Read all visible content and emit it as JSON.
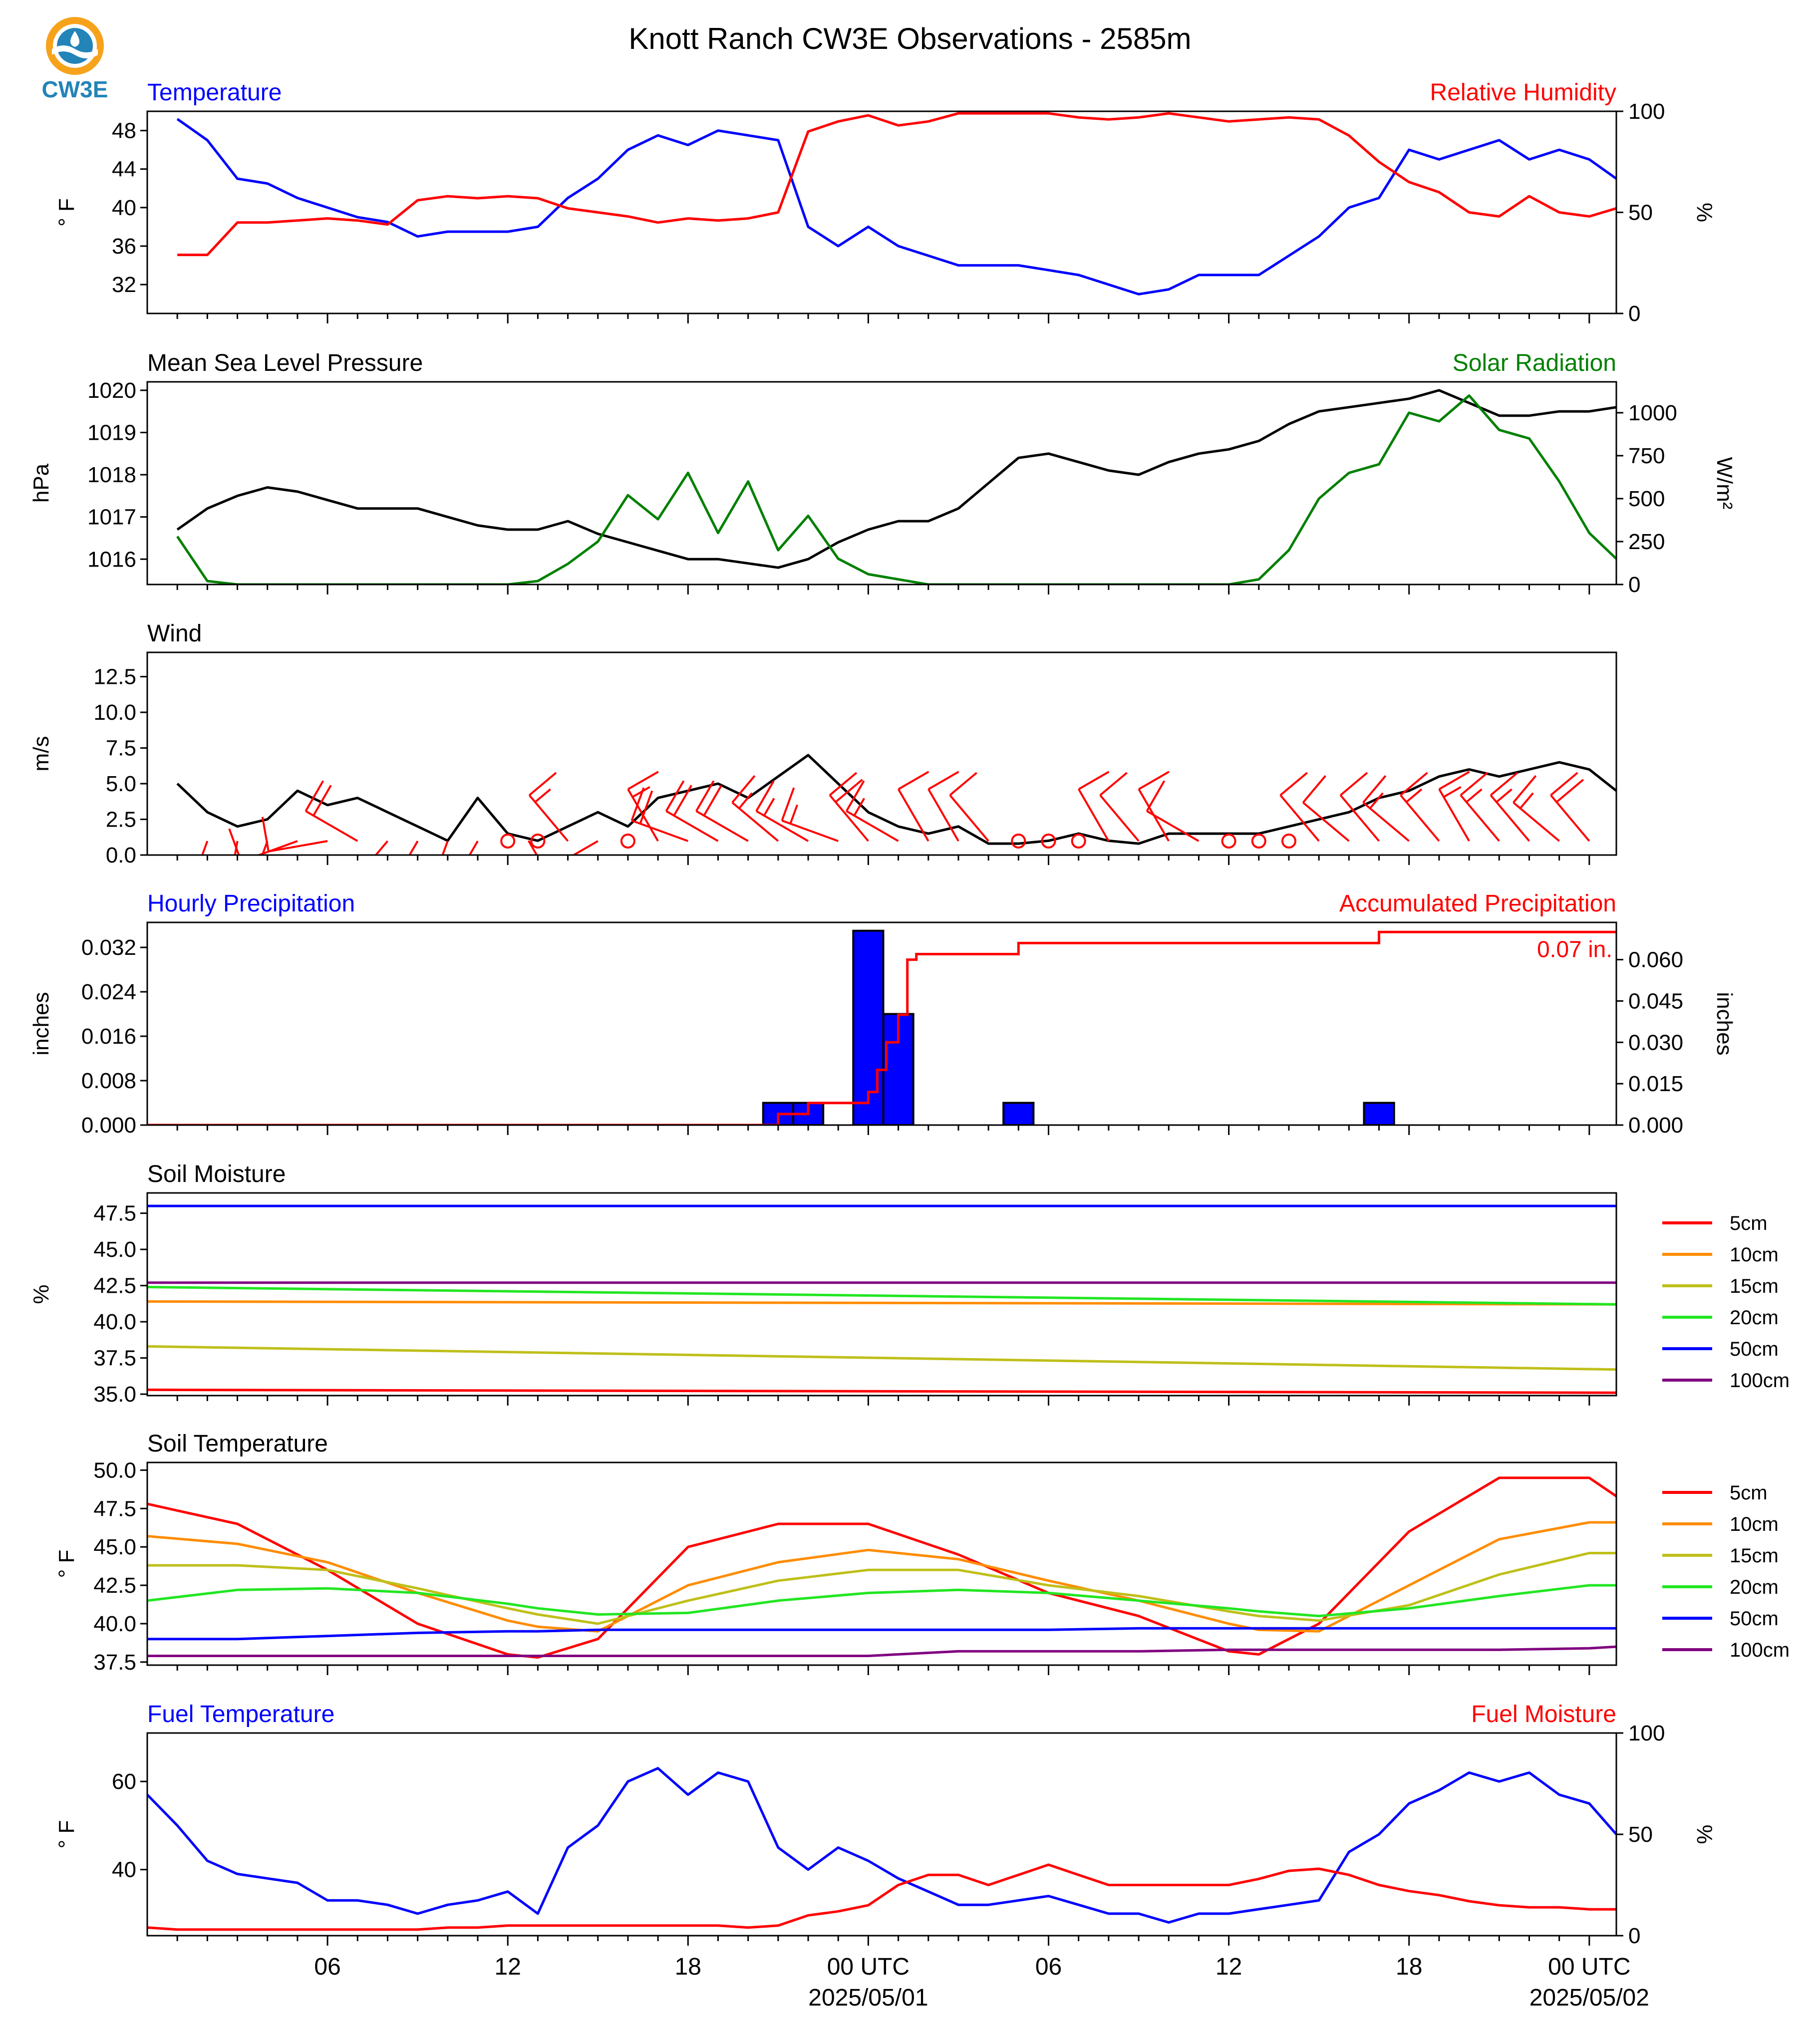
{
  "title": "Knott Ranch CW3E Observations - 2585m",
  "logo": {
    "text": "CW3E"
  },
  "colors": {
    "blue": "#0000ff",
    "red": "#ff0000",
    "green": "#008000",
    "black": "#000000",
    "orange": "#ff8c00",
    "olive": "#bfbf1a",
    "lime": "#22e622",
    "purple": "#800080"
  },
  "time_axis": {
    "ticks": [
      {
        "h": 6,
        "label": "06"
      },
      {
        "h": 12,
        "label": "12"
      },
      {
        "h": 18,
        "label": "18"
      },
      {
        "h": 24,
        "label": "00 UTC",
        "date": "2025/05/01"
      },
      {
        "h": 30,
        "label": "06"
      },
      {
        "h": 36,
        "label": "12"
      },
      {
        "h": 42,
        "label": "18"
      },
      {
        "h": 48,
        "label": "00 UTC",
        "date": "2025/05/02"
      }
    ]
  },
  "chart_data": [
    {
      "id": "temp_rh",
      "type": "line",
      "title_left": "Temperature",
      "title_right": "Relative Humidity",
      "ylabel": "° F",
      "ylabel_right": "%",
      "ylim": [
        29,
        50
      ],
      "yticks": [
        32,
        36,
        40,
        44,
        48
      ],
      "ylim_right": [
        0,
        100
      ],
      "yticks_right": [
        0,
        50,
        100
      ],
      "x_hours": [
        1,
        2,
        3,
        4,
        5,
        6,
        7,
        8,
        9,
        10,
        11,
        12,
        13,
        14,
        15,
        16,
        17,
        18,
        19,
        20,
        21,
        22,
        23,
        24,
        25,
        26,
        27,
        28,
        29,
        30,
        31,
        32,
        33,
        34,
        35,
        36,
        37,
        38,
        39,
        40,
        41,
        42,
        43,
        44,
        45,
        46,
        47,
        48,
        48.9
      ],
      "series": [
        {
          "name": "Temperature",
          "axis": "left",
          "color": "#0000ff",
          "values": [
            49.2,
            47,
            43,
            42.5,
            41,
            40,
            39,
            38.5,
            37,
            37.5,
            37.5,
            37.5,
            38,
            41,
            43,
            46,
            47.5,
            46.5,
            48,
            47.5,
            47,
            38,
            36,
            38,
            36,
            35,
            34,
            34,
            34,
            33.5,
            33,
            32,
            31,
            31.5,
            33,
            33,
            33,
            35,
            37,
            40,
            41,
            46,
            45,
            46,
            47,
            45,
            46,
            45,
            43
          ]
        },
        {
          "name": "Relative Humidity",
          "axis": "right",
          "color": "#ff0000",
          "values": [
            29,
            29,
            45,
            45,
            46,
            47,
            46,
            44,
            56,
            58,
            57,
            58,
            57,
            52,
            50,
            48,
            45,
            47,
            46,
            47,
            50,
            90,
            95,
            98,
            93,
            95,
            99,
            99,
            99,
            99,
            97,
            96,
            97,
            99,
            97,
            95,
            96,
            97,
            96,
            88,
            75,
            65,
            60,
            50,
            48,
            58,
            50,
            48,
            52
          ]
        }
      ]
    },
    {
      "id": "mslp_solar",
      "type": "line",
      "title_left": "Mean Sea Level Pressure",
      "title_right": "Solar Radiation",
      "ylabel": "hPa",
      "ylabel_right": "W/m²",
      "ylim": [
        1015.4,
        1020.2
      ],
      "yticks": [
        1016,
        1017,
        1018,
        1019,
        1020
      ],
      "ylim_right": [
        0,
        1180
      ],
      "yticks_right": [
        0,
        250,
        500,
        750,
        1000
      ],
      "x_hours": [
        1,
        2,
        3,
        4,
        5,
        6,
        7,
        8,
        9,
        10,
        11,
        12,
        13,
        14,
        15,
        16,
        17,
        18,
        19,
        20,
        21,
        22,
        23,
        24,
        25,
        26,
        27,
        28,
        29,
        30,
        31,
        32,
        33,
        34,
        35,
        36,
        37,
        38,
        39,
        40,
        41,
        42,
        43,
        44,
        45,
        46,
        47,
        48,
        48.9
      ],
      "series": [
        {
          "name": "Mean Sea Level Pressure",
          "axis": "left",
          "color": "#000000",
          "values": [
            1016.7,
            1017.2,
            1017.5,
            1017.7,
            1017.6,
            1017.4,
            1017.2,
            1017.2,
            1017.2,
            1017.0,
            1016.8,
            1016.7,
            1016.7,
            1016.9,
            1016.6,
            1016.4,
            1016.2,
            1016.0,
            1016.0,
            1015.9,
            1015.8,
            1016.0,
            1016.4,
            1016.7,
            1016.9,
            1016.9,
            1017.2,
            1017.8,
            1018.4,
            1018.5,
            1018.3,
            1018.1,
            1018.0,
            1018.3,
            1018.5,
            1018.6,
            1018.8,
            1019.2,
            1019.5,
            1019.6,
            1019.7,
            1019.8,
            1020.0,
            1019.7,
            1019.4,
            1019.4,
            1019.5,
            1019.5,
            1019.6
          ]
        },
        {
          "name": "Solar Radiation",
          "axis": "right",
          "color": "#008000",
          "values": [
            280,
            20,
            0,
            0,
            0,
            0,
            0,
            0,
            0,
            0,
            0,
            0,
            20,
            120,
            250,
            520,
            380,
            650,
            300,
            600,
            200,
            400,
            150,
            60,
            30,
            0,
            0,
            0,
            0,
            0,
            0,
            0,
            0,
            0,
            0,
            0,
            30,
            200,
            500,
            650,
            700,
            1000,
            950,
            1100,
            900,
            850,
            600,
            300,
            150
          ]
        }
      ]
    },
    {
      "id": "wind",
      "type": "line",
      "title_left": "Wind",
      "ylabel": "m/s",
      "ylim": [
        0,
        14.2
      ],
      "yticks": [
        0.0,
        2.5,
        5.0,
        7.5,
        10.0,
        12.5
      ],
      "x_hours": [
        1,
        2,
        3,
        4,
        5,
        6,
        7,
        8,
        9,
        10,
        11,
        12,
        13,
        14,
        15,
        16,
        17,
        18,
        19,
        20,
        21,
        22,
        23,
        24,
        25,
        26,
        27,
        28,
        29,
        30,
        31,
        32,
        33,
        34,
        35,
        36,
        37,
        38,
        39,
        40,
        41,
        42,
        43,
        44,
        45,
        46,
        47,
        48,
        48.9
      ],
      "series": [
        {
          "name": "Wind",
          "axis": "left",
          "color": "#000000",
          "values": [
            5.0,
            3.0,
            2.0,
            2.5,
            4.5,
            3.5,
            4.0,
            3.0,
            2.0,
            1.0,
            4.0,
            1.5,
            1.0,
            2.0,
            3.0,
            2.0,
            4.0,
            4.5,
            5.0,
            4.0,
            5.5,
            7.0,
            5.0,
            3.0,
            2.0,
            1.5,
            2.0,
            0.8,
            0.8,
            1.0,
            1.5,
            1.0,
            0.8,
            1.5,
            1.5,
            1.5,
            1.5,
            2.0,
            2.5,
            3.0,
            4.0,
            4.5,
            5.5,
            6.0,
            5.5,
            6.0,
            6.5,
            6.0,
            4.5
          ]
        }
      ],
      "barb_hours": [
        2,
        3,
        4,
        5,
        6,
        7,
        8,
        9,
        10,
        11,
        12,
        13,
        14,
        15,
        16,
        17,
        18,
        19,
        20,
        21,
        22,
        23,
        24,
        25,
        26,
        27,
        28,
        29,
        30,
        31,
        32,
        33,
        34,
        35,
        36,
        37,
        38,
        39,
        40,
        41,
        42,
        43,
        44,
        45,
        46,
        47,
        48
      ],
      "barb_speed": [
        4,
        3,
        3,
        2,
        2,
        5,
        2,
        1,
        1,
        2,
        0,
        0,
        4,
        2,
        0,
        6,
        5,
        5,
        5,
        4,
        6,
        4,
        5,
        4,
        1,
        3,
        0.5,
        0,
        0,
        0,
        0.5,
        0.5,
        0.5,
        1,
        0,
        0,
        0,
        2,
        2,
        2,
        4,
        6,
        6,
        6,
        6,
        6,
        5
      ],
      "barb_dir": [
        200,
        190,
        200,
        250,
        260,
        300,
        220,
        210,
        200,
        210,
        0,
        0,
        320,
        240,
        0,
        330,
        290,
        300,
        300,
        310,
        300,
        290,
        320,
        300,
        330,
        330,
        320,
        0,
        0,
        0,
        330,
        320,
        330,
        300,
        0,
        0,
        0,
        320,
        310,
        320,
        310,
        320,
        330,
        320,
        320,
        310,
        320
      ]
    },
    {
      "id": "precip",
      "type": "bar",
      "title_left": "Hourly Precipitation",
      "title_right": "Accumulated Precipitation",
      "ylabel": "inches",
      "ylabel_right": "inches",
      "ylim": [
        0,
        0.0365
      ],
      "yticks": [
        0.0,
        0.008,
        0.016,
        0.024,
        0.032
      ],
      "ylim_right": [
        0,
        0.0735
      ],
      "yticks_right": [
        0.0,
        0.015,
        0.03,
        0.045,
        0.06
      ],
      "annotation": "0.07 in.",
      "bars": [
        {
          "h": 21,
          "value": 0.004
        },
        {
          "h": 22,
          "value": 0.004
        },
        {
          "h": 24,
          "value": 0.035
        },
        {
          "h": 25,
          "value": 0.02
        },
        {
          "h": 29,
          "value": 0.004
        },
        {
          "h": 41,
          "value": 0.004
        }
      ],
      "accumulated": {
        "x_hours": [
          0,
          20,
          21,
          22,
          23,
          24,
          24.3,
          24.6,
          25,
          25.3,
          25.6,
          29,
          41,
          48.9
        ],
        "values": [
          0,
          0,
          0.004,
          0.008,
          0.008,
          0.012,
          0.02,
          0.03,
          0.04,
          0.06,
          0.062,
          0.066,
          0.07,
          0.07
        ]
      }
    },
    {
      "id": "soil_moisture",
      "type": "line",
      "title_left": "Soil Moisture",
      "ylabel": "%",
      "ylim": [
        34.9,
        48.9
      ],
      "yticks": [
        35.0,
        37.5,
        40.0,
        42.5,
        45.0,
        47.5
      ],
      "x_hours": [
        0,
        48.9
      ],
      "series": [
        {
          "name": "5cm",
          "color": "#ff0000",
          "values": [
            35.3,
            35.1
          ]
        },
        {
          "name": "10cm",
          "color": "#ff8c00",
          "values": [
            41.4,
            41.2
          ]
        },
        {
          "name": "15cm",
          "color": "#bfbf1a",
          "values": [
            38.3,
            36.7
          ]
        },
        {
          "name": "20cm",
          "color": "#22e622",
          "values": [
            42.4,
            41.2
          ]
        },
        {
          "name": "50cm",
          "color": "#0000ff",
          "values": [
            48.0,
            48.0
          ]
        },
        {
          "name": "100cm",
          "color": "#800080",
          "values": [
            42.7,
            42.7
          ]
        }
      ]
    },
    {
      "id": "soil_temp",
      "type": "line",
      "title_left": "Soil Temperature",
      "ylabel": "° F",
      "ylim": [
        37.3,
        50.5
      ],
      "yticks": [
        37.5,
        40.0,
        42.5,
        45.0,
        47.5,
        50.0
      ],
      "x_hours": [
        0,
        3,
        6,
        9,
        12,
        13,
        15,
        18,
        21,
        24,
        27,
        30,
        33,
        36,
        37,
        39,
        42,
        45,
        48,
        48.9
      ],
      "series": [
        {
          "name": "5cm",
          "color": "#ff0000",
          "values": [
            47.8,
            46.5,
            43.5,
            40,
            38,
            37.8,
            39,
            45,
            46.5,
            46.5,
            44.5,
            42,
            40.5,
            38.2,
            38,
            40,
            46,
            49.5,
            49.5,
            48.3
          ]
        },
        {
          "name": "10cm",
          "color": "#ff8c00",
          "values": [
            45.7,
            45.2,
            44,
            42,
            40.2,
            39.8,
            39.5,
            42.5,
            44,
            44.8,
            44.2,
            42.8,
            41.5,
            40,
            39.6,
            39.5,
            42.5,
            45.5,
            46.6,
            46.6
          ]
        },
        {
          "name": "15cm",
          "color": "#bfbf1a",
          "values": [
            43.8,
            43.8,
            43.5,
            42.3,
            41,
            40.6,
            40,
            41.5,
            42.8,
            43.5,
            43.5,
            42.5,
            41.8,
            40.8,
            40.5,
            40.2,
            41.2,
            43.2,
            44.6,
            44.6
          ]
        },
        {
          "name": "20cm",
          "color": "#22e622",
          "values": [
            41.5,
            42.2,
            42.3,
            42,
            41.3,
            41,
            40.6,
            40.7,
            41.5,
            42,
            42.2,
            42,
            41.5,
            41,
            40.8,
            40.5,
            41,
            41.8,
            42.5,
            42.5
          ]
        },
        {
          "name": "50cm",
          "color": "#0000ff",
          "values": [
            39,
            39,
            39.2,
            39.4,
            39.5,
            39.5,
            39.6,
            39.6,
            39.6,
            39.6,
            39.6,
            39.6,
            39.7,
            39.7,
            39.7,
            39.7,
            39.7,
            39.7,
            39.7,
            39.7
          ]
        },
        {
          "name": "100cm",
          "color": "#800080",
          "values": [
            37.9,
            37.9,
            37.9,
            37.9,
            37.9,
            37.9,
            37.9,
            37.9,
            37.9,
            37.9,
            38.2,
            38.2,
            38.2,
            38.3,
            38.3,
            38.3,
            38.3,
            38.3,
            38.4,
            38.5
          ]
        }
      ]
    },
    {
      "id": "fuel",
      "type": "line",
      "title_left": "Fuel Temperature",
      "title_right": "Fuel Moisture",
      "ylabel": "° F",
      "ylabel_right": "%",
      "ylim": [
        25,
        71
      ],
      "yticks": [
        40,
        60
      ],
      "ylim_right": [
        0,
        100
      ],
      "yticks_right": [
        0,
        50,
        100
      ],
      "x_hours": [
        0,
        1,
        2,
        3,
        4,
        5,
        6,
        7,
        8,
        9,
        10,
        11,
        12,
        13,
        14,
        15,
        16,
        17,
        18,
        19,
        20,
        21,
        22,
        23,
        24,
        25,
        26,
        27,
        28,
        29,
        30,
        31,
        32,
        33,
        34,
        35,
        36,
        37,
        38,
        39,
        40,
        41,
        42,
        43,
        44,
        45,
        46,
        47,
        48,
        48.9
      ],
      "series": [
        {
          "name": "Fuel Temperature",
          "axis": "left",
          "color": "#0000ff",
          "values": [
            57,
            50,
            42,
            39,
            38,
            37,
            33,
            33,
            32,
            30,
            32,
            33,
            35,
            30,
            45,
            50,
            60,
            63,
            57,
            62,
            60,
            45,
            40,
            45,
            42,
            38,
            35,
            32,
            32,
            33,
            34,
            32,
            30,
            30,
            28,
            30,
            30,
            31,
            32,
            33,
            44,
            48,
            55,
            58,
            62,
            60,
            62,
            57,
            55,
            48
          ]
        },
        {
          "name": "Fuel Moisture",
          "axis": "right",
          "color": "#ff0000",
          "values": [
            4,
            3,
            3,
            3,
            3,
            3,
            3,
            3,
            3,
            3,
            4,
            4,
            5,
            5,
            5,
            5,
            5,
            5,
            5,
            5,
            4,
            5,
            10,
            12,
            15,
            25,
            30,
            30,
            25,
            30,
            35,
            30,
            25,
            25,
            25,
            25,
            25,
            28,
            32,
            33,
            30,
            25,
            22,
            20,
            17,
            15,
            14,
            14,
            13,
            13
          ]
        }
      ]
    }
  ],
  "legend": {
    "soil_moisture": [
      "5cm",
      "10cm",
      "15cm",
      "20cm",
      "50cm",
      "100cm"
    ],
    "soil_temp": [
      "5cm",
      "10cm",
      "15cm",
      "20cm",
      "50cm",
      "100cm"
    ]
  }
}
